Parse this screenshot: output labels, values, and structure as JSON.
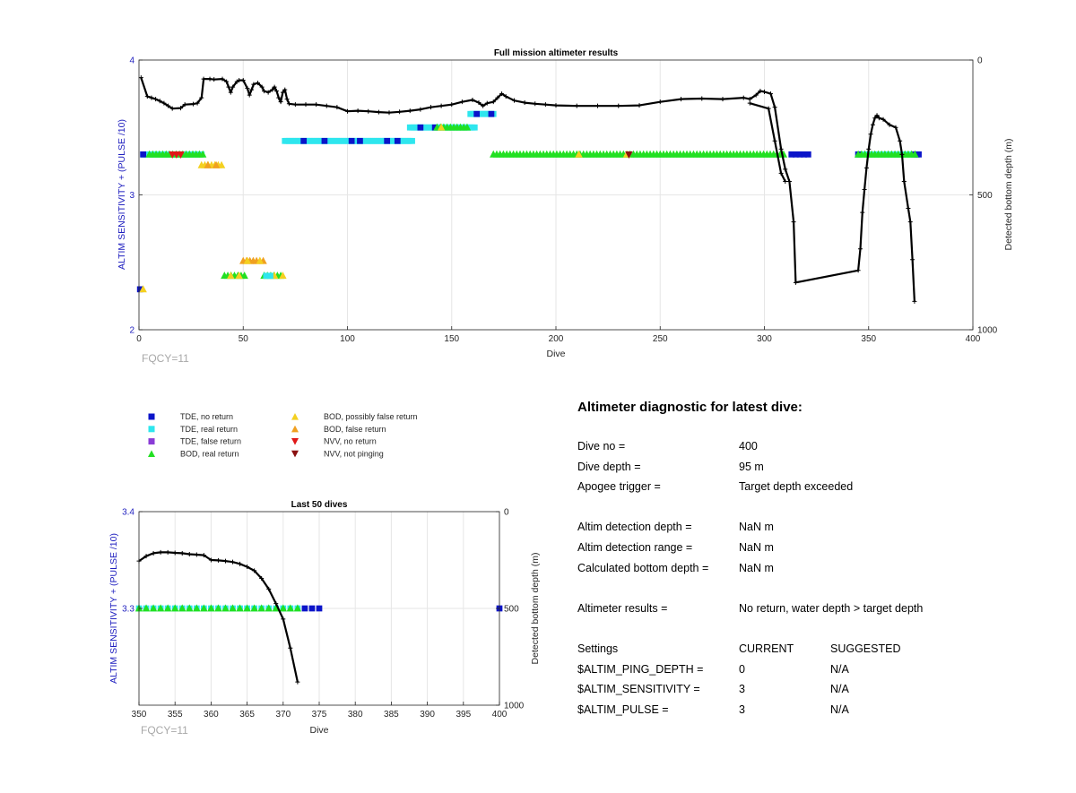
{
  "colors": {
    "tde_no_return": "#0b14c9",
    "tde_real_return": "#2ee6ee",
    "tde_false_return": "#8a3cd6",
    "bod_real_return": "#22e022",
    "bod_possibly_false": "#f4d020",
    "bod_false_return": "#f0a020",
    "nvv_no_return": "#e01818",
    "nvv_not_pinging": "#8a1010",
    "depth_line": "#000000",
    "left_axis": "#1f1fbf"
  },
  "legend": [
    {
      "label": "TDE, no return",
      "marker": "square",
      "color_key": "tde_no_return"
    },
    {
      "label": "TDE, real return",
      "marker": "square",
      "color_key": "tde_real_return"
    },
    {
      "label": "TDE, false return",
      "marker": "square",
      "color_key": "tde_false_return"
    },
    {
      "label": "BOD, real return",
      "marker": "triangle-up",
      "color_key": "bod_real_return"
    },
    {
      "label": "BOD, possibly false return",
      "marker": "triangle-up",
      "color_key": "bod_possibly_false"
    },
    {
      "label": "BOD, false return",
      "marker": "triangle-up",
      "color_key": "bod_false_return"
    },
    {
      "label": "NVV, no return",
      "marker": "triangle-down",
      "color_key": "nvv_no_return"
    },
    {
      "label": "NVV, not pinging",
      "marker": "triangle-down",
      "color_key": "nvv_not_pinging"
    }
  ],
  "chart_data": [
    {
      "type": "scatter",
      "title": "Full mission altimeter results",
      "xlabel": "Dive",
      "ylabel": "ALTIM SENSITIVITY + (PULSE /10)",
      "y2label": "Detected bottom depth (m)",
      "xlim": [
        0,
        400
      ],
      "ylim": [
        2,
        4
      ],
      "y2lim": [
        0,
        1000
      ],
      "y2_reversed": true,
      "xticks": [
        "0",
        "50",
        "100",
        "150",
        "200",
        "250",
        "300",
        "350",
        "400"
      ],
      "yticks": [
        "2",
        "3",
        "4"
      ],
      "y2ticks": [
        "0",
        "500",
        "1000"
      ],
      "grid": true,
      "annotation": "FQCY=11",
      "marker_series": [
        {
          "color_key": "tde_real_return",
          "marker": "square",
          "y": 3.3,
          "x_ranges": [
            [
              2,
              30
            ],
            [
              345,
              372
            ]
          ],
          "step": 1
        },
        {
          "color_key": "tde_no_return",
          "marker": "square",
          "y": 3.3,
          "x": [
            2,
            313,
            315,
            317,
            319,
            321,
            345,
            372,
            373,
            374
          ]
        },
        {
          "color_key": "bod_real_return",
          "marker": "triangle-up",
          "y": 3.3,
          "x_ranges": [
            [
              5,
              31
            ],
            [
              170,
              310
            ],
            [
              345,
              373
            ]
          ],
          "step": 1.6
        },
        {
          "color_key": "bod_possibly_false",
          "marker": "triangle-up",
          "y": 3.3,
          "x": [
            211,
            234
          ]
        },
        {
          "color_key": "nvv_no_return",
          "marker": "triangle-down",
          "y": 3.3,
          "x": [
            16,
            18,
            20
          ]
        },
        {
          "color_key": "nvv_not_pinging",
          "marker": "triangle-down",
          "y": 3.3,
          "x": [
            235
          ]
        },
        {
          "color_key": "bod_possibly_false",
          "marker": "triangle-up",
          "y": 3.22,
          "x_ranges": [
            [
              30,
              41
            ]
          ],
          "step": 1.6
        },
        {
          "color_key": "bod_false_return",
          "marker": "triangle-up",
          "y": 3.22,
          "x": [
            33,
            37
          ]
        },
        {
          "color_key": "tde_real_return",
          "marker": "square",
          "y": 3.4,
          "x_ranges": [
            [
              70,
              131
            ]
          ],
          "step": 1
        },
        {
          "color_key": "tde_no_return",
          "marker": "square",
          "y": 3.4,
          "x": [
            79,
            89,
            102,
            106,
            119,
            124
          ]
        },
        {
          "color_key": "tde_real_return",
          "marker": "square",
          "y": 3.5,
          "x_ranges": [
            [
              130,
              161
            ]
          ],
          "step": 1
        },
        {
          "color_key": "tde_no_return",
          "marker": "square",
          "y": 3.5,
          "x": [
            135,
            142
          ]
        },
        {
          "color_key": "bod_real_return",
          "marker": "triangle-up",
          "y": 3.5,
          "x_ranges": [
            [
              143,
              158
            ]
          ],
          "step": 1.6
        },
        {
          "color_key": "bod_possibly_false",
          "marker": "triangle-up",
          "y": 3.5,
          "x": [
            145
          ]
        },
        {
          "color_key": "tde_real_return",
          "marker": "square",
          "y": 3.6,
          "x_ranges": [
            [
              159,
              170
            ]
          ],
          "step": 1
        },
        {
          "color_key": "tde_no_return",
          "marker": "square",
          "y": 3.6,
          "x": [
            162,
            169
          ]
        },
        {
          "color_key": "bod_false_return",
          "marker": "triangle-up",
          "y": 2.51,
          "x_ranges": [
            [
              50,
              61
            ]
          ],
          "step": 1.6
        },
        {
          "color_key": "bod_possibly_false",
          "marker": "triangle-up",
          "y": 2.51,
          "x": [
            52,
            58
          ]
        },
        {
          "color_key": "bod_real_return",
          "marker": "triangle-up",
          "y": 2.4,
          "x_ranges": [
            [
              41,
              51
            ],
            [
              60,
              68
            ]
          ],
          "step": 1.6
        },
        {
          "color_key": "bod_possibly_false",
          "marker": "triangle-up",
          "y": 2.4,
          "x": [
            44,
            48,
            65,
            69
          ]
        },
        {
          "color_key": "tde_real_return",
          "marker": "square",
          "y": 2.4,
          "x": [
            61,
            63
          ]
        },
        {
          "color_key": "tde_no_return",
          "marker": "square",
          "y": 2.3,
          "x": [
            0.5
          ]
        },
        {
          "color_key": "bod_possibly_false",
          "marker": "triangle-up",
          "y": 2.3,
          "x": [
            2
          ]
        }
      ],
      "depth_series": {
        "color_key": "depth_line",
        "points": [
          [
            1,
            65
          ],
          [
            4,
            135
          ],
          [
            6,
            140
          ],
          [
            8,
            145
          ],
          [
            10,
            152
          ],
          [
            12,
            160
          ],
          [
            14,
            170
          ],
          [
            16,
            180
          ],
          [
            20,
            178
          ],
          [
            22,
            165
          ],
          [
            26,
            163
          ],
          [
            28,
            160
          ],
          [
            30,
            140
          ],
          [
            31,
            70
          ],
          [
            34,
            70
          ],
          [
            36,
            72
          ],
          [
            40,
            70
          ],
          [
            42,
            80
          ],
          [
            43,
            100
          ],
          [
            44,
            120
          ],
          [
            45,
            100
          ],
          [
            47,
            80
          ],
          [
            48,
            75
          ],
          [
            50,
            75
          ],
          [
            52,
            105
          ],
          [
            53,
            130
          ],
          [
            54,
            110
          ],
          [
            55,
            90
          ],
          [
            57,
            85
          ],
          [
            59,
            100
          ],
          [
            60,
            115
          ],
          [
            62,
            120
          ],
          [
            64,
            110
          ],
          [
            65,
            100
          ],
          [
            66,
            115
          ],
          [
            67,
            140
          ],
          [
            68,
            155
          ],
          [
            69,
            120
          ],
          [
            70,
            110
          ],
          [
            71,
            145
          ],
          [
            72,
            162
          ],
          [
            75,
            165
          ],
          [
            80,
            165
          ],
          [
            85,
            165
          ],
          [
            90,
            170
          ],
          [
            95,
            175
          ],
          [
            100,
            190
          ],
          [
            105,
            188
          ],
          [
            110,
            190
          ],
          [
            115,
            193
          ],
          [
            120,
            195
          ],
          [
            125,
            192
          ],
          [
            130,
            188
          ],
          [
            135,
            183
          ],
          [
            140,
            175
          ],
          [
            145,
            170
          ],
          [
            150,
            165
          ],
          [
            155,
            155
          ],
          [
            160,
            148
          ],
          [
            163,
            158
          ],
          [
            165,
            170
          ],
          [
            167,
            160
          ],
          [
            170,
            155
          ],
          [
            172,
            140
          ],
          [
            174,
            125
          ],
          [
            176,
            135
          ],
          [
            180,
            150
          ],
          [
            185,
            158
          ],
          [
            190,
            162
          ],
          [
            195,
            165
          ],
          [
            200,
            168
          ],
          [
            210,
            170
          ],
          [
            220,
            170
          ],
          [
            230,
            170
          ],
          [
            240,
            168
          ],
          [
            250,
            155
          ],
          [
            260,
            145
          ],
          [
            270,
            143
          ],
          [
            280,
            145
          ],
          [
            290,
            140
          ],
          [
            293,
            145
          ],
          [
            296,
            130
          ],
          [
            298,
            115
          ],
          [
            300,
            118
          ],
          [
            303,
            125
          ],
          [
            305,
            175
          ],
          [
            308,
            330
          ],
          [
            310,
            405
          ],
          [
            312,
            450
          ],
          [
            314,
            600
          ],
          [
            315,
            825
          ],
          [
            345,
            780
          ],
          [
            346,
            700
          ],
          [
            347,
            565
          ],
          [
            348,
            480
          ],
          [
            349,
            400
          ],
          [
            350,
            330
          ],
          [
            351,
            275
          ],
          [
            352,
            240
          ],
          [
            353,
            215
          ],
          [
            354,
            205
          ],
          [
            355,
            215
          ],
          [
            357,
            220
          ],
          [
            360,
            240
          ],
          [
            363,
            250
          ],
          [
            365,
            300
          ],
          [
            366,
            350
          ],
          [
            367,
            450
          ],
          [
            369,
            550
          ],
          [
            370,
            600
          ],
          [
            371,
            740
          ],
          [
            372,
            895
          ]
        ],
        "extra_segments": [
          [
            [
              293,
              160
            ],
            [
              302,
              180
            ],
            [
              305,
              300
            ],
            [
              308,
              420
            ],
            [
              310,
              450
            ]
          ]
        ]
      }
    },
    {
      "type": "scatter",
      "title": "Last 50 dives",
      "xlabel": "Dive",
      "ylabel": "ALTIM SENSITIVITY + (PULSE /10)",
      "y2label": "Detected bottom depth (m)",
      "xlim": [
        350,
        400
      ],
      "ylim": [
        3.2,
        3.4
      ],
      "y2lim": [
        0,
        1000
      ],
      "y2_reversed": true,
      "xticks": [
        "350",
        "355",
        "360",
        "365",
        "370",
        "375",
        "380",
        "385",
        "390",
        "395",
        "400"
      ],
      "yticks": [
        "3.3",
        "3.4"
      ],
      "y2ticks": [
        "0",
        "500",
        "1000"
      ],
      "grid": true,
      "annotation": "FQCY=11",
      "marker_series": [
        {
          "color_key": "tde_real_return",
          "marker": "square",
          "y": 3.3,
          "x": [
            350,
            351,
            352,
            353,
            354,
            355,
            356,
            357,
            358,
            359,
            360,
            361,
            362,
            363,
            364,
            365,
            366,
            367,
            368,
            369,
            370,
            371,
            372
          ]
        },
        {
          "color_key": "bod_real_return",
          "marker": "triangle-up",
          "y": 3.3,
          "x": [
            350,
            351,
            352,
            353,
            354,
            355,
            356,
            357,
            358,
            359,
            360,
            361,
            362,
            363,
            364,
            365,
            366,
            367,
            368,
            369,
            370,
            371,
            372
          ]
        },
        {
          "color_key": "tde_no_return",
          "marker": "square",
          "y": 3.3,
          "x": [
            373,
            374,
            375,
            400
          ]
        }
      ],
      "depth_series": {
        "color_key": "depth_line",
        "points": [
          [
            350,
            255
          ],
          [
            351,
            230
          ],
          [
            352,
            215
          ],
          [
            353,
            210
          ],
          [
            354,
            210
          ],
          [
            355,
            213
          ],
          [
            356,
            215
          ],
          [
            357,
            220
          ],
          [
            358,
            222
          ],
          [
            359,
            225
          ],
          [
            360,
            250
          ],
          [
            361,
            252
          ],
          [
            362,
            255
          ],
          [
            363,
            260
          ],
          [
            364,
            270
          ],
          [
            365,
            285
          ],
          [
            366,
            305
          ],
          [
            367,
            345
          ],
          [
            368,
            400
          ],
          [
            369,
            475
          ],
          [
            370,
            555
          ],
          [
            371,
            705
          ],
          [
            372,
            880
          ]
        ]
      }
    }
  ],
  "diagnostic": {
    "title": "Altimeter diagnostic for latest dive:",
    "dive_no_label": "Dive no =",
    "dive_no_value": "400",
    "dive_depth_label": "Dive depth =",
    "dive_depth_value": "95 m",
    "apogee_label": "Apogee trigger =",
    "apogee_value": "Target depth exceeded",
    "altim_det_depth_label": "Altim detection depth =",
    "altim_det_depth_value": "NaN m",
    "altim_det_range_label": "Altim detection range =",
    "altim_det_range_value": "NaN m",
    "calc_bottom_label": "Calculated bottom depth =",
    "calc_bottom_value": "NaN m",
    "results_label": "Altimeter results =",
    "results_value": "No return, water depth > target depth",
    "settings_label": "Settings",
    "current_label": "CURRENT",
    "suggested_label": "SUGGESTED",
    "ping_depth_label": "$ALTIM_PING_DEPTH =",
    "ping_depth_current": "0",
    "ping_depth_suggested": "N/A",
    "sensitivity_label": "$ALTIM_SENSITIVITY =",
    "sensitivity_current": "3",
    "sensitivity_suggested": "N/A",
    "pulse_label": "$ALTIM_PULSE =",
    "pulse_current": "3",
    "pulse_suggested": "N/A"
  }
}
